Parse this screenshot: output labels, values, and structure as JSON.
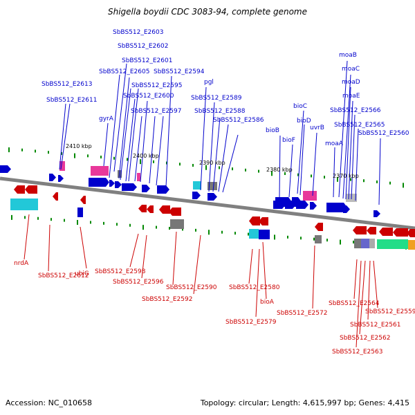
{
  "title": "Shigella boydii CDC 3083-94, complete genome",
  "accession": "Accession: NC_010658",
  "summary": "Topology: circular; Length: 4,615,997 bp; Genes: 4,415",
  "colors": {
    "forward": "#0000cc",
    "reverse": "#cc0000",
    "backbone": "#808080",
    "magenta": "#e8389a",
    "cyan": "#22c8d8",
    "gray": "#777777",
    "green": "#22dd88",
    "orange": "#f0a020",
    "tick": "#008800"
  },
  "scale_labels": [
    "2410 kbp",
    "2400 kbp",
    "2390 kbp",
    "2380 kbp",
    "2370 kbp"
  ],
  "forward_labels": [
    "SbBS512_E2603",
    "SbBS512_E2602",
    "SbBS512_E2601",
    "SbBS512_E2605",
    "SbBS512_E2594",
    "SbBS512_E2613",
    "SbBS512_E2595",
    "SbBS512_E2611",
    "SbBS512_E2600",
    "pgl",
    "SbBS512_E2589",
    "SbBS512_E2597",
    "gyrA",
    "SbBS512_E2588",
    "SbBS512_E2586",
    "bioC",
    "bioD",
    "bioB",
    "uvrB",
    "bioF",
    "moaB",
    "moaC",
    "moaD",
    "moaE",
    "SbBS512_E2566",
    "SbBS512_E2565",
    "SbBS512_E2560",
    "moaA"
  ],
  "reverse_labels": [
    "nrdA",
    "SbBS512_E2612",
    "ubiG",
    "SbBS512_E2598",
    "SbBS512_E2596",
    "SbBS512_E2590",
    "SbBS512_E2592",
    "SbBS512_E2580",
    "bioA",
    "SbBS512_E2579",
    "SbBS512_E2572",
    "SbBS512_E2564",
    "SbBS512_E2559",
    "SbBS512_E2561",
    "SbBS512_E2562",
    "SbBS512_E2563"
  ]
}
